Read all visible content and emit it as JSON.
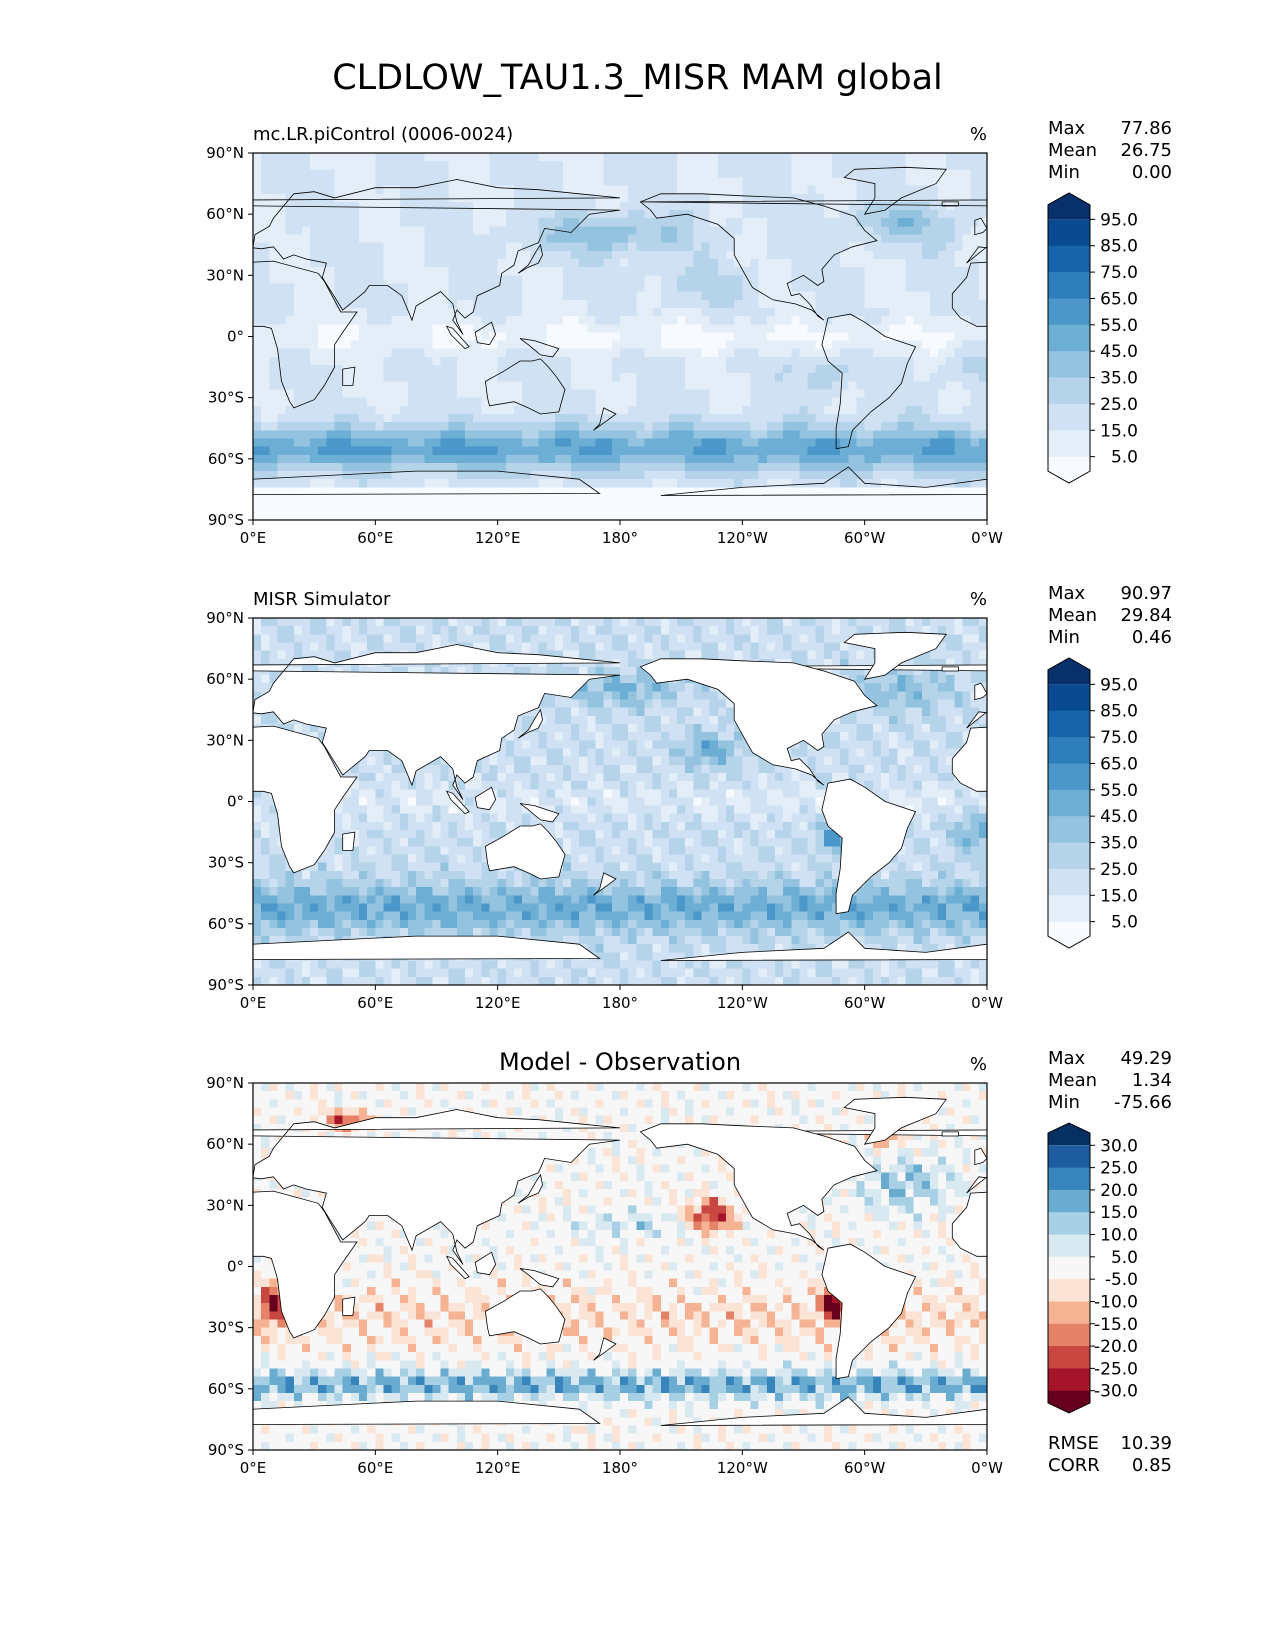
{
  "figure": {
    "title": "CLDLOW_TAU1.3_MISR MAM global"
  },
  "colormaps": {
    "blues": [
      "#f7fbff",
      "#e3eef9",
      "#cfe1f2",
      "#b5d4e9",
      "#93c3df",
      "#6daed5",
      "#4b97c9",
      "#2f7ebc",
      "#1864aa",
      "#0a4a90",
      "#08306b"
    ],
    "rdbu": [
      "#67001f",
      "#a51429",
      "#c94741",
      "#e58267",
      "#f6b394",
      "#fbe3d6",
      "#f7f7f7",
      "#d9e9f1",
      "#a7d0e4",
      "#6aacd0",
      "#3885bc",
      "#1c5c9f",
      "#053061"
    ]
  },
  "chart_data": [
    {
      "type": "heatmap",
      "title": "mc.LR.piControl (0006-0024)",
      "units": "%",
      "stats": {
        "labels": [
          "Max",
          "Mean",
          "Min"
        ],
        "values": [
          "77.86",
          "26.75",
          "0.00"
        ]
      },
      "xticks": [
        "0°E",
        "60°E",
        "120°E",
        "180°",
        "120°W",
        "60°W",
        "0°W"
      ],
      "yticks": [
        "90°N",
        "60°N",
        "30°N",
        "0°",
        "30°S",
        "60°S",
        "90°S"
      ],
      "xlim": [
        0,
        360
      ],
      "ylim": [
        -90,
        90
      ],
      "colorbar": {
        "levels": [
          "95.0",
          "85.0",
          "75.0",
          "65.0",
          "55.0",
          "45.0",
          "35.0",
          "25.0",
          "15.0",
          "5.0"
        ],
        "cmap": "blues",
        "extend": "both"
      },
      "field": "model"
    },
    {
      "type": "heatmap",
      "title": "MISR Simulator",
      "units": "%",
      "stats": {
        "labels": [
          "Max",
          "Mean",
          "Min"
        ],
        "values": [
          "90.97",
          "29.84",
          "0.46"
        ]
      },
      "xticks": [
        "0°E",
        "60°E",
        "120°E",
        "180°",
        "120°W",
        "60°W",
        "0°W"
      ],
      "yticks": [
        "90°N",
        "60°N",
        "30°N",
        "0°",
        "30°S",
        "60°S",
        "90°S"
      ],
      "xlim": [
        0,
        360
      ],
      "ylim": [
        -90,
        90
      ],
      "colorbar": {
        "levels": [
          "95.0",
          "85.0",
          "75.0",
          "65.0",
          "55.0",
          "45.0",
          "35.0",
          "25.0",
          "15.0",
          "5.0"
        ],
        "cmap": "blues",
        "extend": "both"
      },
      "field": "obs"
    },
    {
      "type": "heatmap",
      "title": "Model - Observation",
      "units": "%",
      "stats": {
        "labels": [
          "Max",
          "Mean",
          "Min"
        ],
        "values": [
          "49.29",
          "1.34",
          "-75.66"
        ]
      },
      "xticks": [
        "0°E",
        "60°E",
        "120°E",
        "180°",
        "120°W",
        "60°W",
        "0°W"
      ],
      "yticks": [
        "90°N",
        "60°N",
        "30°N",
        "0°",
        "30°S",
        "60°S",
        "90°S"
      ],
      "xlim": [
        0,
        360
      ],
      "ylim": [
        -90,
        90
      ],
      "colorbar": {
        "levels": [
          "30.0",
          "25.0",
          "20.0",
          "15.0",
          "10.0",
          "5.0",
          "-5.0",
          "-10.0",
          "-15.0",
          "-20.0",
          "-25.0",
          "-30.0"
        ],
        "cmap": "rdbu",
        "extend": "both"
      },
      "extra_stats": {
        "labels": [
          "RMSE",
          "CORR"
        ],
        "values": [
          "10.39",
          "0.85"
        ]
      },
      "field": "diff"
    }
  ]
}
